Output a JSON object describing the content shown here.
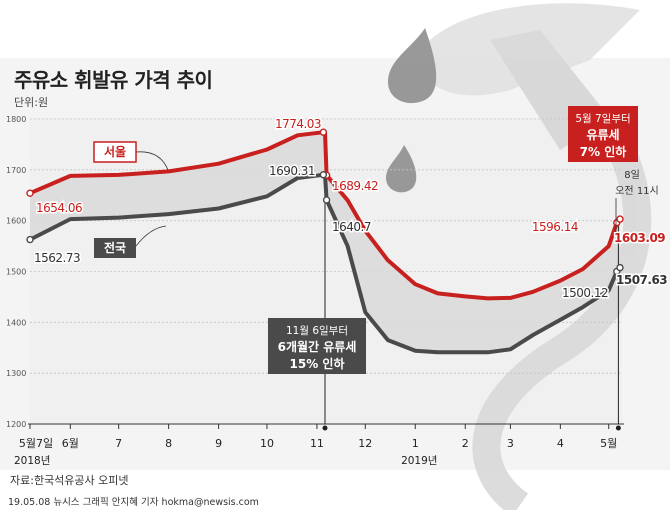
{
  "title": "주유소 휘발유 가격 추이",
  "unit": "단위:원",
  "source": "자료:한국석유공사 오피넷",
  "credit": "19.05.08 뉴시스 그래픽 안지혜 기자 hokma@newsis.com",
  "colors": {
    "seoul": "#c8201e",
    "national": "#4a4a4a",
    "fill": "#d9d9d9"
  },
  "chart_data": {
    "type": "line",
    "title": "주유소 휘발유 가격 추이",
    "ylabel": "단위:원",
    "ylim": [
      1200,
      1800
    ],
    "yticks": [
      1200,
      1300,
      1400,
      1500,
      1600,
      1700,
      1800
    ],
    "x_tick_labels": [
      "5월7일",
      "6월",
      "7",
      "8",
      "9",
      "10",
      "11",
      "12",
      "1",
      "2",
      "3",
      "4",
      "5월"
    ],
    "x_year_labels": [
      "2018년",
      "2019년"
    ],
    "x": [
      "2018-05-07",
      "2018-06-01",
      "2018-07-01",
      "2018-08-01",
      "2018-09-01",
      "2018-10-01",
      "2018-10-20",
      "2018-11-05",
      "2018-11-06",
      "2018-11-07",
      "2018-11-20",
      "2018-12-01",
      "2018-12-15",
      "2019-01-01",
      "2019-01-15",
      "2019-02-01",
      "2019-02-15",
      "2019-03-01",
      "2019-03-15",
      "2019-04-01",
      "2019-04-15",
      "2019-05-01",
      "2019-05-06",
      "2019-05-07",
      "2019-05-08"
    ],
    "series": [
      {
        "name": "서울",
        "values": [
          1654.06,
          1688,
          1690,
          1697,
          1712,
          1740,
          1768,
          1774.03,
          1774.03,
          1689.42,
          1640,
          1580,
          1522,
          1475,
          1457,
          1451,
          1447,
          1448,
          1460,
          1482,
          1505,
          1550,
          1596.14,
          1596.14,
          1603.09
        ]
      },
      {
        "name": "전국",
        "values": [
          1562.73,
          1603,
          1606,
          1613,
          1624,
          1648,
          1684,
          1690.31,
          1690.31,
          1640.7,
          1550,
          1420,
          1365,
          1344,
          1341,
          1341,
          1341,
          1347,
          1375,
          1405,
          1430,
          1463,
          1500.12,
          1500.12,
          1507.63
        ]
      }
    ],
    "annotations": {
      "seoul_start": "1654.06",
      "national_start": "1562.73",
      "seoul_peak": "1774.03",
      "national_peak": "1690.31",
      "seoul_after_cut": "1689.42",
      "national_after_cut": "1640.7",
      "seoul_may6": "1596.14",
      "seoul_may8": "1603.09",
      "national_may6": "1500.12",
      "national_may8": "1507.63",
      "cut1": [
        "11월 6일부터",
        "6개월간 유류세",
        "15% 인하"
      ],
      "cut2": [
        "5월 7일부터",
        "유류세",
        "7% 인하"
      ],
      "may8_note": [
        "8일",
        "오전 11시"
      ]
    }
  }
}
